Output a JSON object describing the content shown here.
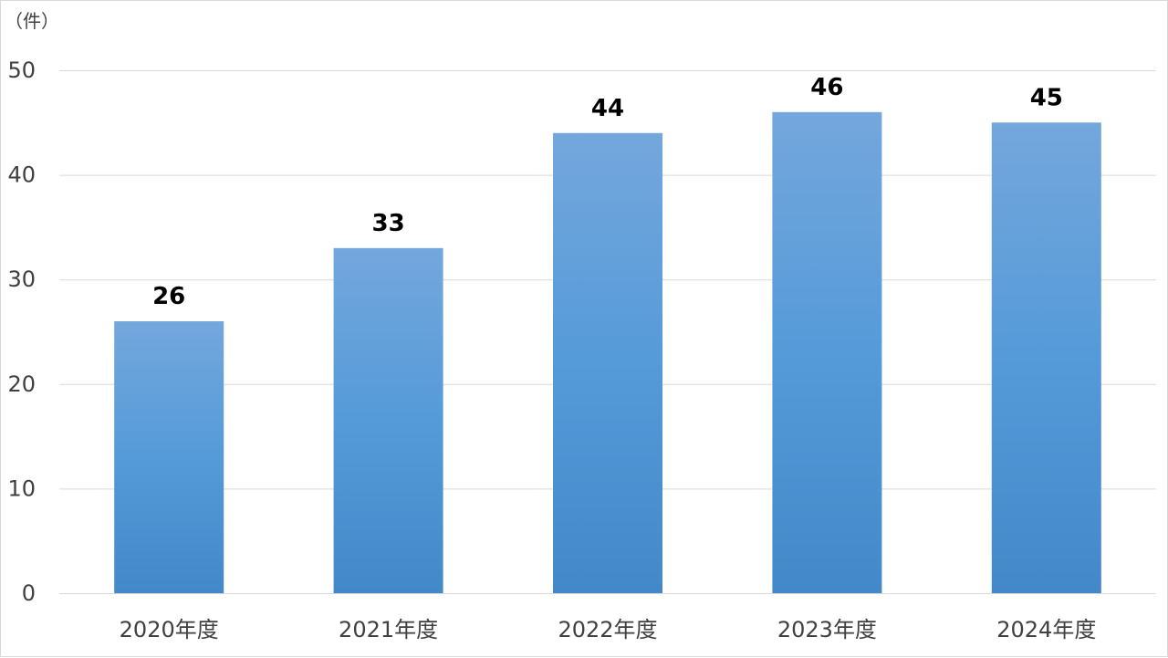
{
  "chart_data": {
    "type": "bar",
    "unit_label": "（件）",
    "categories": [
      "2020年度",
      "2021年度",
      "2022年度",
      "2023年度",
      "2024年度"
    ],
    "values": [
      26,
      33,
      44,
      46,
      45
    ],
    "ylim": [
      0,
      50
    ],
    "yticks": [
      0,
      10,
      20,
      30,
      40,
      50
    ],
    "grid": true,
    "legend": "none",
    "data_labels": true,
    "colors": {
      "bar_top": "#74a7dc",
      "bar_mid": "#559ad9",
      "bar_bottom": "#4388c8",
      "grid": "#d9d9d9",
      "axis_text": "#404040",
      "data_label": "#000000"
    }
  }
}
